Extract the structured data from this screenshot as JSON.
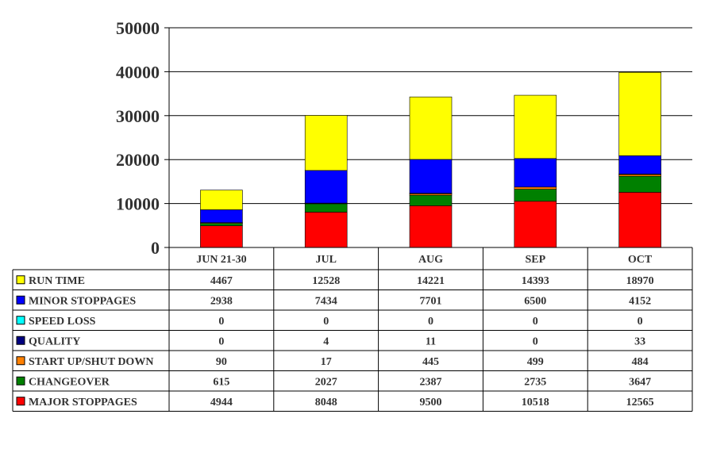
{
  "chart_data": {
    "type": "bar",
    "stacked": true,
    "categories": [
      "JUN 21-30",
      "JUL",
      "AUG",
      "SEP",
      "OCT"
    ],
    "ylim": [
      0,
      50000
    ],
    "yticks": [
      0,
      10000,
      20000,
      30000,
      40000,
      50000
    ],
    "grid": true,
    "legend": "data-table-below",
    "series": [
      {
        "name": "RUN TIME",
        "color": "#ffff00",
        "values": [
          4467,
          12528,
          14221,
          14393,
          18970
        ]
      },
      {
        "name": "MINOR STOPPAGES",
        "color": "#0000ff",
        "values": [
          2938,
          7434,
          7701,
          6500,
          4152
        ]
      },
      {
        "name": "SPEED LOSS",
        "color": "#00ffff",
        "values": [
          0,
          0,
          0,
          0,
          0
        ]
      },
      {
        "name": "QUALITY",
        "color": "#000080",
        "values": [
          0,
          4,
          11,
          0,
          33
        ]
      },
      {
        "name": "START UP/SHUT DOWN",
        "color": "#ff8000",
        "values": [
          90,
          17,
          445,
          499,
          484
        ]
      },
      {
        "name": "CHANGEOVER",
        "color": "#008000",
        "values": [
          615,
          2027,
          2387,
          2735,
          3647
        ]
      },
      {
        "name": "MAJOR STOPPAGES",
        "color": "#ff0000",
        "values": [
          4944,
          8048,
          9500,
          10518,
          12565
        ]
      }
    ]
  }
}
